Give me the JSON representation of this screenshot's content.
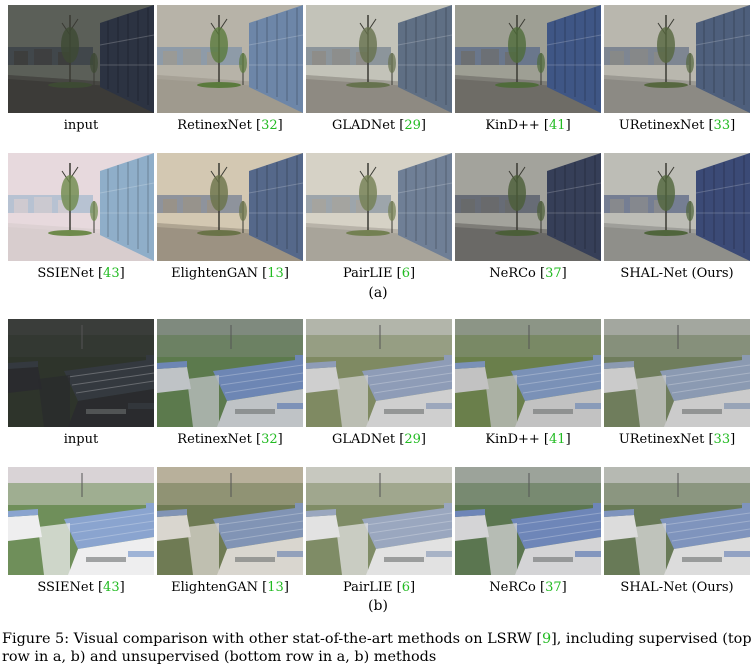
{
  "panel_a": {
    "row1": [
      {
        "name": "input",
        "ref": ""
      },
      {
        "name": "RetinexNet",
        "ref": "32"
      },
      {
        "name": "GLADNet",
        "ref": "29"
      },
      {
        "name": "KinD++",
        "ref": "41"
      },
      {
        "name": "URetinexNet",
        "ref": "33"
      }
    ],
    "row2": [
      {
        "name": "SSIENet",
        "ref": "43"
      },
      {
        "name": "ElightenGAN",
        "ref": "13"
      },
      {
        "name": "PairLIE",
        "ref": "6"
      },
      {
        "name": "NeRCo",
        "ref": "37"
      },
      {
        "name": "SHAL-Net (Ours)",
        "ref": ""
      }
    ],
    "label": "(a)"
  },
  "panel_b": {
    "row1": [
      {
        "name": "input",
        "ref": ""
      },
      {
        "name": "RetinexNet",
        "ref": "32"
      },
      {
        "name": "GLADNet",
        "ref": "29"
      },
      {
        "name": "KinD++",
        "ref": "41"
      },
      {
        "name": "URetinexNet",
        "ref": "33"
      }
    ],
    "row2": [
      {
        "name": "SSIENet",
        "ref": "43"
      },
      {
        "name": "ElightenGAN",
        "ref": "13"
      },
      {
        "name": "PairLIE",
        "ref": "6"
      },
      {
        "name": "NeRCo",
        "ref": "37"
      },
      {
        "name": "SHAL-Net (Ours)",
        "ref": ""
      }
    ],
    "label": "(b)"
  },
  "caption": {
    "prefix": "Figure 5: Visual comparison with other stat-of-the-art methods on LSRW [",
    "ref": "9",
    "suffix": "], including supervised (top row in a, b) and unsupervised (bottom row in a, b) methods"
  },
  "tile_tones_a": [
    {
      "sky": "#5b5f58",
      "ground": "#3c3b38",
      "glass": "#2c3342",
      "tree": "#3d4a33"
    },
    {
      "sky": "#b7b3a8",
      "ground": "#9f9a8e",
      "glass": "#6d86a8",
      "tree": "#5a7a3c"
    },
    {
      "sky": "#c3c3b9",
      "ground": "#8e8a82",
      "glass": "#5f6f84",
      "tree": "#66724e"
    },
    {
      "sky": "#9e9f94",
      "ground": "#6e6c66",
      "glass": "#3f5685",
      "tree": "#4f6b3a"
    },
    {
      "sky": "#b9b7ae",
      "ground": "#8c8a84",
      "glass": "#4e5f7c",
      "tree": "#56673f"
    },
    {
      "sky": "#e7d9dd",
      "ground": "#d8cdce",
      "glass": "#8faec9",
      "tree": "#6e8a4b"
    },
    {
      "sky": "#d3c8b2",
      "ground": "#9c9282",
      "glass": "#55688a",
      "tree": "#6a7348"
    },
    {
      "sky": "#d6d2c6",
      "ground": "#a8a49a",
      "glass": "#6f7f96",
      "tree": "#738052"
    },
    {
      "sky": "#a3a39c",
      "ground": "#6a6966",
      "glass": "#363f58",
      "tree": "#4b5e38"
    },
    {
      "sky": "#bdbdb6",
      "ground": "#8f8f8a",
      "glass": "#3b4a76",
      "tree": "#50653c"
    }
  ],
  "tile_tones_b": [
    {
      "sky": "#3a3d3a",
      "roof": "#34393f",
      "wall": "#2a2b2e",
      "field": "#2e342b"
    },
    {
      "sky": "#7f8a7e",
      "roof": "#6d86b4",
      "wall": "#bfc3c6",
      "field": "#5c7a4d"
    },
    {
      "sky": "#b2b5aa",
      "roof": "#8e9cb7",
      "wall": "#cfcfcf",
      "field": "#7f8a62"
    },
    {
      "sky": "#8c9586",
      "roof": "#7a91b7",
      "wall": "#c2c2c2",
      "field": "#6a7f4b"
    },
    {
      "sky": "#a3a79f",
      "roof": "#8b9ab2",
      "wall": "#cbcbcb",
      "field": "#6f7d5c"
    },
    {
      "sky": "#d9d3d6",
      "roof": "#8aa4cf",
      "wall": "#eeeeef",
      "field": "#6f8f5a"
    },
    {
      "sky": "#b8b09b",
      "roof": "#8194b5",
      "wall": "#d9d6cf",
      "field": "#6f7b54"
    },
    {
      "sky": "#c7c8bf",
      "roof": "#9aa7bf",
      "wall": "#e2e2e2",
      "field": "#7f8c66"
    },
    {
      "sky": "#9ca39a",
      "roof": "#6e86b8",
      "wall": "#d4d4d6",
      "field": "#5b7650"
    },
    {
      "sky": "#b6b9b2",
      "roof": "#7f94bd",
      "wall": "#dcdcdc",
      "field": "#687a57"
    }
  ]
}
